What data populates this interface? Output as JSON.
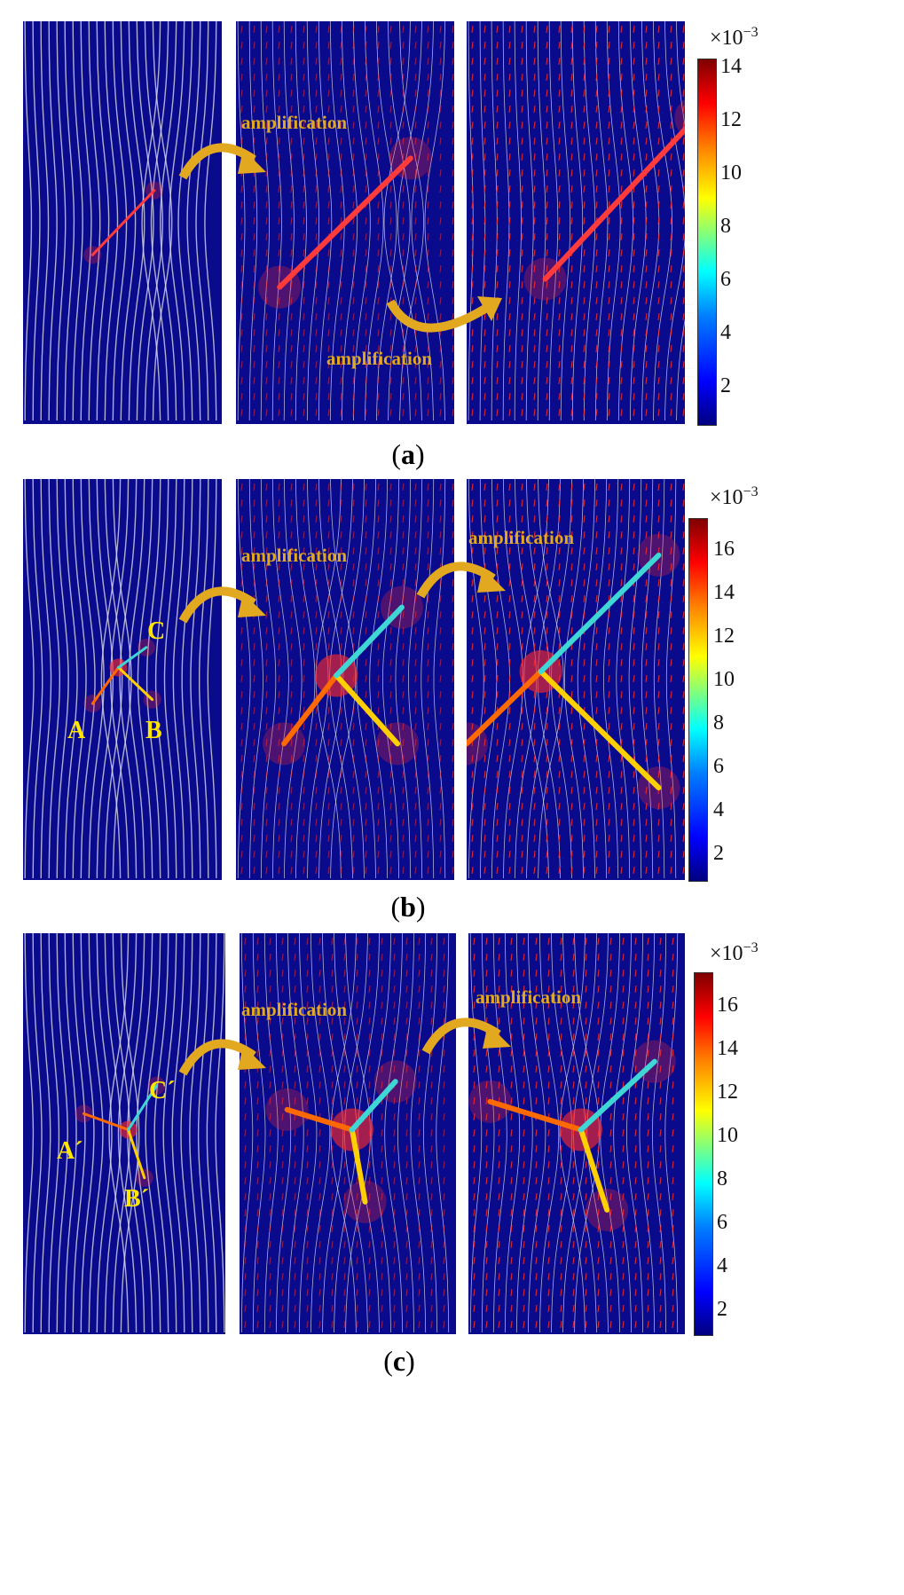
{
  "rows": [
    {
      "id": "a",
      "caption_open": "(",
      "caption_letter": "a",
      "caption_close": ")",
      "amplification_labels": [
        "amplification",
        "amplification"
      ],
      "colorbar": {
        "exponent_base": "×10",
        "exponent_power": "−3",
        "ticks": [
          "14",
          "12",
          "10",
          "8",
          "6",
          "4",
          "2"
        ]
      },
      "point_labels": []
    },
    {
      "id": "b",
      "caption_open": "(",
      "caption_letter": "b",
      "caption_close": ")",
      "amplification_labels": [
        "amplification",
        "amplification"
      ],
      "colorbar": {
        "exponent_base": "×10",
        "exponent_power": "−3",
        "ticks": [
          "16",
          "14",
          "12",
          "10",
          "8",
          "6",
          "4",
          "2"
        ]
      },
      "point_labels": [
        "A",
        "B",
        "C"
      ]
    },
    {
      "id": "c",
      "caption_open": "(",
      "caption_letter": "c",
      "caption_close": ")",
      "amplification_labels": [
        "amplification",
        "amplification"
      ],
      "colorbar": {
        "exponent_base": "×10",
        "exponent_power": "−3",
        "ticks": [
          "16",
          "14",
          "12",
          "10",
          "8",
          "6",
          "4",
          "2"
        ]
      },
      "point_labels": [
        "A´",
        "B´",
        "C´"
      ]
    }
  ],
  "colors": {
    "background": "#0a0a8c",
    "streamline": "#d8d8e8",
    "vector": "#ff2a2a",
    "arrow": "#e2a81f",
    "point_label": "#ffe600"
  }
}
